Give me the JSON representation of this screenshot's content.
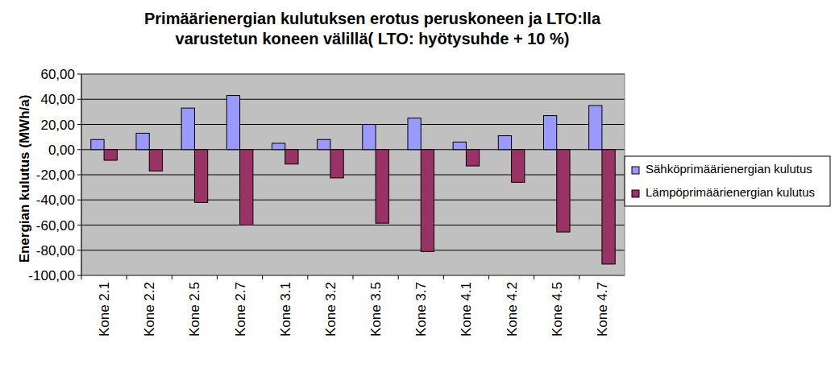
{
  "chart_data": {
    "type": "bar",
    "title": "Primäärienergian kulutuksen erotus peruskoneen ja LTO:lla varustetun koneen välillä( LTO: hyötysuhde + 10 %)",
    "y_label": "Energian kulutus (MWh/a)",
    "categories": [
      "Kone 2.1",
      "Kone 2.2",
      "Kone 2.5",
      "Kone 2.7",
      "Kone 3.1",
      "Kone 3.2",
      "Kone 3.5",
      "Kone 3.7",
      "Kone 4.1",
      "Kone 4.2",
      "Kone 4.5",
      "Kone 4.7"
    ],
    "series": [
      {
        "name": "Sähköprimäärienergian kulutus",
        "color": "#9999ff",
        "values": [
          8,
          13,
          33,
          43,
          5,
          8,
          20,
          25,
          6,
          11,
          27,
          35
        ]
      },
      {
        "name": "Lämpöprimäärienergian kulutus",
        "color": "#993366",
        "values": [
          -8.5,
          -17,
          -42,
          -60,
          -11.5,
          -22.5,
          -58.5,
          -81,
          -13,
          -26,
          -65.5,
          -91
        ]
      }
    ],
    "ylim": [
      -100,
      60
    ],
    "yticks": [
      {
        "value": -100,
        "label": "-100,00"
      },
      {
        "value": -80,
        "label": "-80,00"
      },
      {
        "value": -60,
        "label": "-60,00"
      },
      {
        "value": -40,
        "label": "-40,00"
      },
      {
        "value": -20,
        "label": "-20,00"
      },
      {
        "value": 0,
        "label": "0,00"
      },
      {
        "value": 20,
        "label": "20,00"
      },
      {
        "value": 40,
        "label": "40,00"
      },
      {
        "value": 60,
        "label": "60,00"
      }
    ],
    "grid": true,
    "legend": "right"
  }
}
